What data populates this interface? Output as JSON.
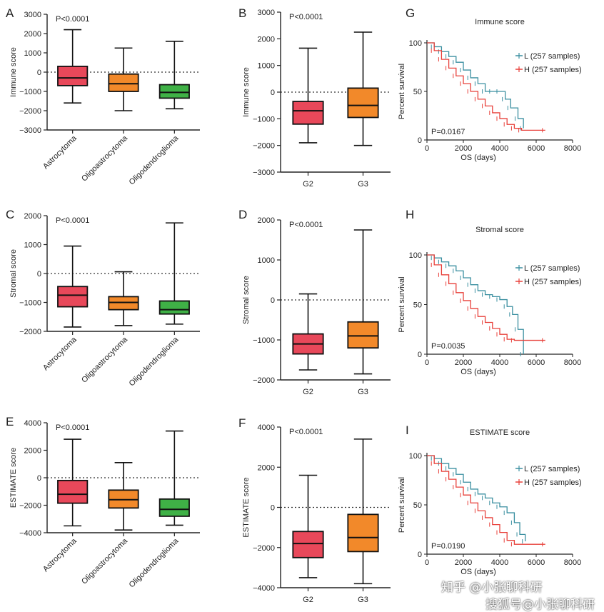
{
  "colors": {
    "astrocytoma": "#e8485a",
    "oligoastrocytoma": "#f2892a",
    "oligodendroglioma": "#3fb146",
    "g2": "#e8485a",
    "g3": "#f2892a",
    "km_low": "#3a8fa0",
    "km_high": "#e8403a"
  },
  "watermark": {
    "line1": "知乎 @小张聊科研",
    "line2": "搜狐号@小张聊科研"
  },
  "chart_data": [
    {
      "panel": "A",
      "type": "box",
      "ylabel": "Immune score",
      "pvalue": "P<0.0001",
      "ylim": [
        -3000,
        3000
      ],
      "yticks": [
        -3000,
        -2000,
        -1000,
        0,
        1000,
        2000,
        3000
      ],
      "tick_labels": [
        "−3000",
        "−2000",
        "−1000",
        "0",
        "1000",
        "2000",
        "3000"
      ],
      "reference_line": 0,
      "categories": [
        "Astrocytoma",
        "Oligoastrocytoma",
        "Oligodendroglioma"
      ],
      "boxes": [
        {
          "min": -1600,
          "q1": -700,
          "median": -300,
          "q3": 300,
          "max": 2200,
          "color_key": "astrocytoma"
        },
        {
          "min": -2000,
          "q1": -1000,
          "median": -600,
          "q3": -100,
          "max": 1250,
          "color_key": "oligoastrocytoma"
        },
        {
          "min": -1900,
          "q1": -1350,
          "median": -1050,
          "q3": -650,
          "max": 1600,
          "color_key": "oligodendroglioma"
        }
      ]
    },
    {
      "panel": "B",
      "type": "box",
      "ylabel": "Immune score",
      "pvalue": "P<0.0001",
      "ylim": [
        -3000,
        3000
      ],
      "yticks": [
        -3000,
        -2000,
        -1000,
        0,
        1000,
        2000,
        3000
      ],
      "tick_labels": [
        "−3000",
        "−2000",
        "−1000",
        "0",
        "1000",
        "2000",
        "3000"
      ],
      "reference_line": 0,
      "categories": [
        "G2",
        "G3"
      ],
      "boxes": [
        {
          "min": -1900,
          "q1": -1200,
          "median": -700,
          "q3": -350,
          "max": 1650,
          "color_key": "g2"
        },
        {
          "min": -2000,
          "q1": -950,
          "median": -500,
          "q3": 150,
          "max": 2250,
          "color_key": "g3"
        }
      ]
    },
    {
      "panel": "G",
      "type": "survival",
      "title": "Immune score",
      "pvalue": "P=0.0167",
      "ylabel": "Percent survival",
      "xlabel": "OS (days)",
      "xlim": [
        0,
        8000
      ],
      "ylim": [
        0,
        100
      ],
      "xticks": [
        0,
        2000,
        4000,
        6000,
        8000
      ],
      "yticks": [
        0,
        50,
        100
      ],
      "series": [
        {
          "name": "L (257 samples)",
          "color_key": "km_low",
          "points": [
            [
              0,
              100
            ],
            [
              400,
              96
            ],
            [
              800,
              91
            ],
            [
              1200,
              86
            ],
            [
              1600,
              80
            ],
            [
              2000,
              72
            ],
            [
              2400,
              64
            ],
            [
              2800,
              58
            ],
            [
              3200,
              50
            ],
            [
              3600,
              50
            ],
            [
              4000,
              50
            ],
            [
              4300,
              42
            ],
            [
              4600,
              33
            ],
            [
              5000,
              22
            ],
            [
              5300,
              12
            ]
          ]
        },
        {
          "name": "H (257 samples)",
          "color_key": "km_high",
          "points": [
            [
              0,
              100
            ],
            [
              400,
              92
            ],
            [
              800,
              83
            ],
            [
              1200,
              74
            ],
            [
              1600,
              66
            ],
            [
              2000,
              58
            ],
            [
              2400,
              50
            ],
            [
              2800,
              42
            ],
            [
              3200,
              35
            ],
            [
              3600,
              28
            ],
            [
              4000,
              22
            ],
            [
              4400,
              16
            ],
            [
              4800,
              12
            ],
            [
              5200,
              10
            ],
            [
              6500,
              10
            ]
          ]
        }
      ]
    },
    {
      "panel": "C",
      "type": "box",
      "ylabel": "Stromal score",
      "pvalue": "P<0.0001",
      "ylim": [
        -2000,
        2000
      ],
      "yticks": [
        -2000,
        -1000,
        0,
        1000,
        2000
      ],
      "tick_labels": [
        "−2000",
        "−1000",
        "0",
        "1000",
        "2000"
      ],
      "reference_line": 0,
      "categories": [
        "Astrocytoma",
        "Oligoastrocytoma",
        "Oligodendroglioma"
      ],
      "boxes": [
        {
          "min": -1850,
          "q1": -1150,
          "median": -750,
          "q3": -450,
          "max": 950,
          "color_key": "astrocytoma"
        },
        {
          "min": -1800,
          "q1": -1250,
          "median": -1000,
          "q3": -800,
          "max": 60,
          "color_key": "oligoastrocytoma"
        },
        {
          "min": -1750,
          "q1": -1400,
          "median": -1250,
          "q3": -950,
          "max": 1750,
          "color_key": "oligodendroglioma"
        }
      ]
    },
    {
      "panel": "D",
      "type": "box",
      "ylabel": "Stromal score",
      "pvalue": "P<0.0001",
      "ylim": [
        -2000,
        2000
      ],
      "yticks": [
        -2000,
        -1000,
        0,
        1000,
        2000
      ],
      "tick_labels": [
        "−2000",
        "−1000",
        "0",
        "1000",
        "2000"
      ],
      "reference_line": 0,
      "categories": [
        "G2",
        "G3"
      ],
      "boxes": [
        {
          "min": -1750,
          "q1": -1350,
          "median": -1100,
          "q3": -850,
          "max": 150,
          "color_key": "g2"
        },
        {
          "min": -1850,
          "q1": -1200,
          "median": -900,
          "q3": -550,
          "max": 1750,
          "color_key": "g3"
        }
      ]
    },
    {
      "panel": "H",
      "type": "survival",
      "title": "Stromal score",
      "pvalue": "P=0.0035",
      "ylabel": "Percent survival",
      "xlabel": "OS (days)",
      "xlim": [
        0,
        8000
      ],
      "ylim": [
        0,
        100
      ],
      "xticks": [
        0,
        2000,
        4000,
        6000,
        8000
      ],
      "yticks": [
        0,
        50,
        100
      ],
      "series": [
        {
          "name": "L (257 samples)",
          "color_key": "km_low",
          "points": [
            [
              0,
              100
            ],
            [
              400,
              97
            ],
            [
              800,
              93
            ],
            [
              1200,
              89
            ],
            [
              1600,
              84
            ],
            [
              2000,
              77
            ],
            [
              2400,
              70
            ],
            [
              2800,
              64
            ],
            [
              3200,
              60
            ],
            [
              3600,
              58
            ],
            [
              4000,
              55
            ],
            [
              4400,
              48
            ],
            [
              4700,
              40
            ],
            [
              5000,
              25
            ],
            [
              5300,
              0
            ]
          ]
        },
        {
          "name": "H (257 samples)",
          "color_key": "km_high",
          "points": [
            [
              0,
              100
            ],
            [
              400,
              90
            ],
            [
              800,
              80
            ],
            [
              1200,
              71
            ],
            [
              1600,
              62
            ],
            [
              2000,
              54
            ],
            [
              2400,
              46
            ],
            [
              2800,
              38
            ],
            [
              3200,
              32
            ],
            [
              3600,
              26
            ],
            [
              4000,
              20
            ],
            [
              4400,
              15
            ],
            [
              4800,
              14
            ],
            [
              6500,
              14
            ]
          ]
        }
      ]
    },
    {
      "panel": "E",
      "type": "box",
      "ylabel": "ESTIMATE score",
      "pvalue": "P<0.0001",
      "ylim": [
        -4000,
        4000
      ],
      "yticks": [
        -4000,
        -2000,
        0,
        2000,
        4000
      ],
      "tick_labels": [
        "−4000",
        "−2000",
        "0",
        "2000",
        "4000"
      ],
      "reference_line": 0,
      "categories": [
        "Astrocytoma",
        "Oligoastrocytoma",
        "Oligodendroglioma"
      ],
      "boxes": [
        {
          "min": -3500,
          "q1": -1850,
          "median": -1200,
          "q3": -200,
          "max": 2800,
          "color_key": "astrocytoma"
        },
        {
          "min": -3800,
          "q1": -2200,
          "median": -1600,
          "q3": -900,
          "max": 1100,
          "color_key": "oligoastrocytoma"
        },
        {
          "min": -3450,
          "q1": -2800,
          "median": -2300,
          "q3": -1550,
          "max": 3400,
          "color_key": "oligodendroglioma"
        }
      ]
    },
    {
      "panel": "F",
      "type": "box",
      "ylabel": "ESTIMATE score",
      "pvalue": "P<0.0001",
      "ylim": [
        -4000,
        4000
      ],
      "yticks": [
        -4000,
        -2000,
        0,
        2000,
        4000
      ],
      "tick_labels": [
        "−4000",
        "−2000",
        "0",
        "2000",
        "4000"
      ],
      "reference_line": 0,
      "categories": [
        "G2",
        "G3"
      ],
      "boxes": [
        {
          "min": -3500,
          "q1": -2500,
          "median": -1800,
          "q3": -1200,
          "max": 1600,
          "color_key": "g2"
        },
        {
          "min": -3800,
          "q1": -2200,
          "median": -1500,
          "q3": -350,
          "max": 3400,
          "color_key": "g3"
        }
      ]
    },
    {
      "panel": "I",
      "type": "survival",
      "title": "ESTIMATE score",
      "pvalue": "P=0.0190",
      "ylabel": "Percent survival",
      "xlabel": "OS (days)",
      "xlim": [
        0,
        8000
      ],
      "ylim": [
        0,
        100
      ],
      "xticks": [
        0,
        2000,
        4000,
        6000,
        8000
      ],
      "yticks": [
        0,
        50,
        100
      ],
      "series": [
        {
          "name": "L (257 samples)",
          "color_key": "km_low",
          "points": [
            [
              0,
              100
            ],
            [
              400,
              97
            ],
            [
              800,
              92
            ],
            [
              1200,
              87
            ],
            [
              1600,
              81
            ],
            [
              2000,
              73
            ],
            [
              2400,
              66
            ],
            [
              2800,
              61
            ],
            [
              3200,
              57
            ],
            [
              3600,
              52
            ],
            [
              4000,
              48
            ],
            [
              4400,
              42
            ],
            [
              4800,
              32
            ],
            [
              5100,
              20
            ],
            [
              5400,
              13
            ]
          ]
        },
        {
          "name": "H (257 samples)",
          "color_key": "km_high",
          "points": [
            [
              0,
              100
            ],
            [
              400,
              92
            ],
            [
              800,
              84
            ],
            [
              1200,
              76
            ],
            [
              1600,
              68
            ],
            [
              2000,
              60
            ],
            [
              2400,
              52
            ],
            [
              2800,
              44
            ],
            [
              3200,
              37
            ],
            [
              3600,
              30
            ],
            [
              4000,
              22
            ],
            [
              4400,
              14
            ],
            [
              4800,
              10
            ],
            [
              6500,
              10
            ]
          ]
        }
      ]
    }
  ]
}
